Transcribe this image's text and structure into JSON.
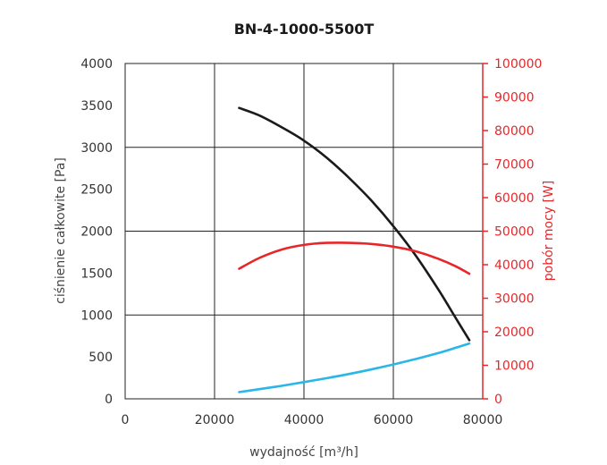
{
  "chart_data": {
    "type": "line",
    "title": "BN-4-1000-5500T",
    "xlabel": "wydajność [m³/h]",
    "ylabel": "ciśnienie całkowite [Pa]",
    "y2label": "pobór mocy [W]",
    "xlim": [
      0,
      80000
    ],
    "ylim": [
      0,
      4000
    ],
    "y2lim": [
      0,
      100000
    ],
    "x_ticks": [
      "0",
      "20000",
      "40000",
      "60000",
      "80000"
    ],
    "y_ticks": [
      "0",
      "500",
      "1000",
      "1500",
      "2000",
      "2500",
      "3000",
      "3500",
      "4000"
    ],
    "y2_ticks": [
      "0",
      "10000",
      "20000",
      "30000",
      "40000",
      "50000",
      "60000",
      "70000",
      "80000",
      "90000",
      "100000"
    ],
    "grid": true,
    "legend": "none",
    "series": [
      {
        "axis": "left",
        "color": "#1a1a1a",
        "x": [
          25500,
          30000,
          35000,
          40000,
          45000,
          50000,
          55000,
          60000,
          65000,
          70000,
          74000,
          77000
        ],
        "y": [
          3470,
          3380,
          3240,
          3080,
          2880,
          2640,
          2370,
          2060,
          1710,
          1310,
          960,
          700
        ]
      },
      {
        "axis": "right",
        "color": "#e8262a",
        "x": [
          25500,
          30000,
          35000,
          40000,
          45000,
          50000,
          55000,
          60000,
          65000,
          70000,
          74000,
          77000
        ],
        "y": [
          38800,
          42000,
          44500,
          45900,
          46500,
          46500,
          46200,
          45400,
          44000,
          41800,
          39500,
          37300
        ]
      },
      {
        "axis": "left",
        "color": "#29b6e8",
        "x": [
          25500,
          30000,
          35000,
          40000,
          45000,
          50000,
          55000,
          60000,
          65000,
          70000,
          74000,
          77000
        ],
        "y": [
          80,
          115,
          155,
          200,
          245,
          295,
          350,
          410,
          475,
          545,
          610,
          660
        ]
      }
    ]
  }
}
